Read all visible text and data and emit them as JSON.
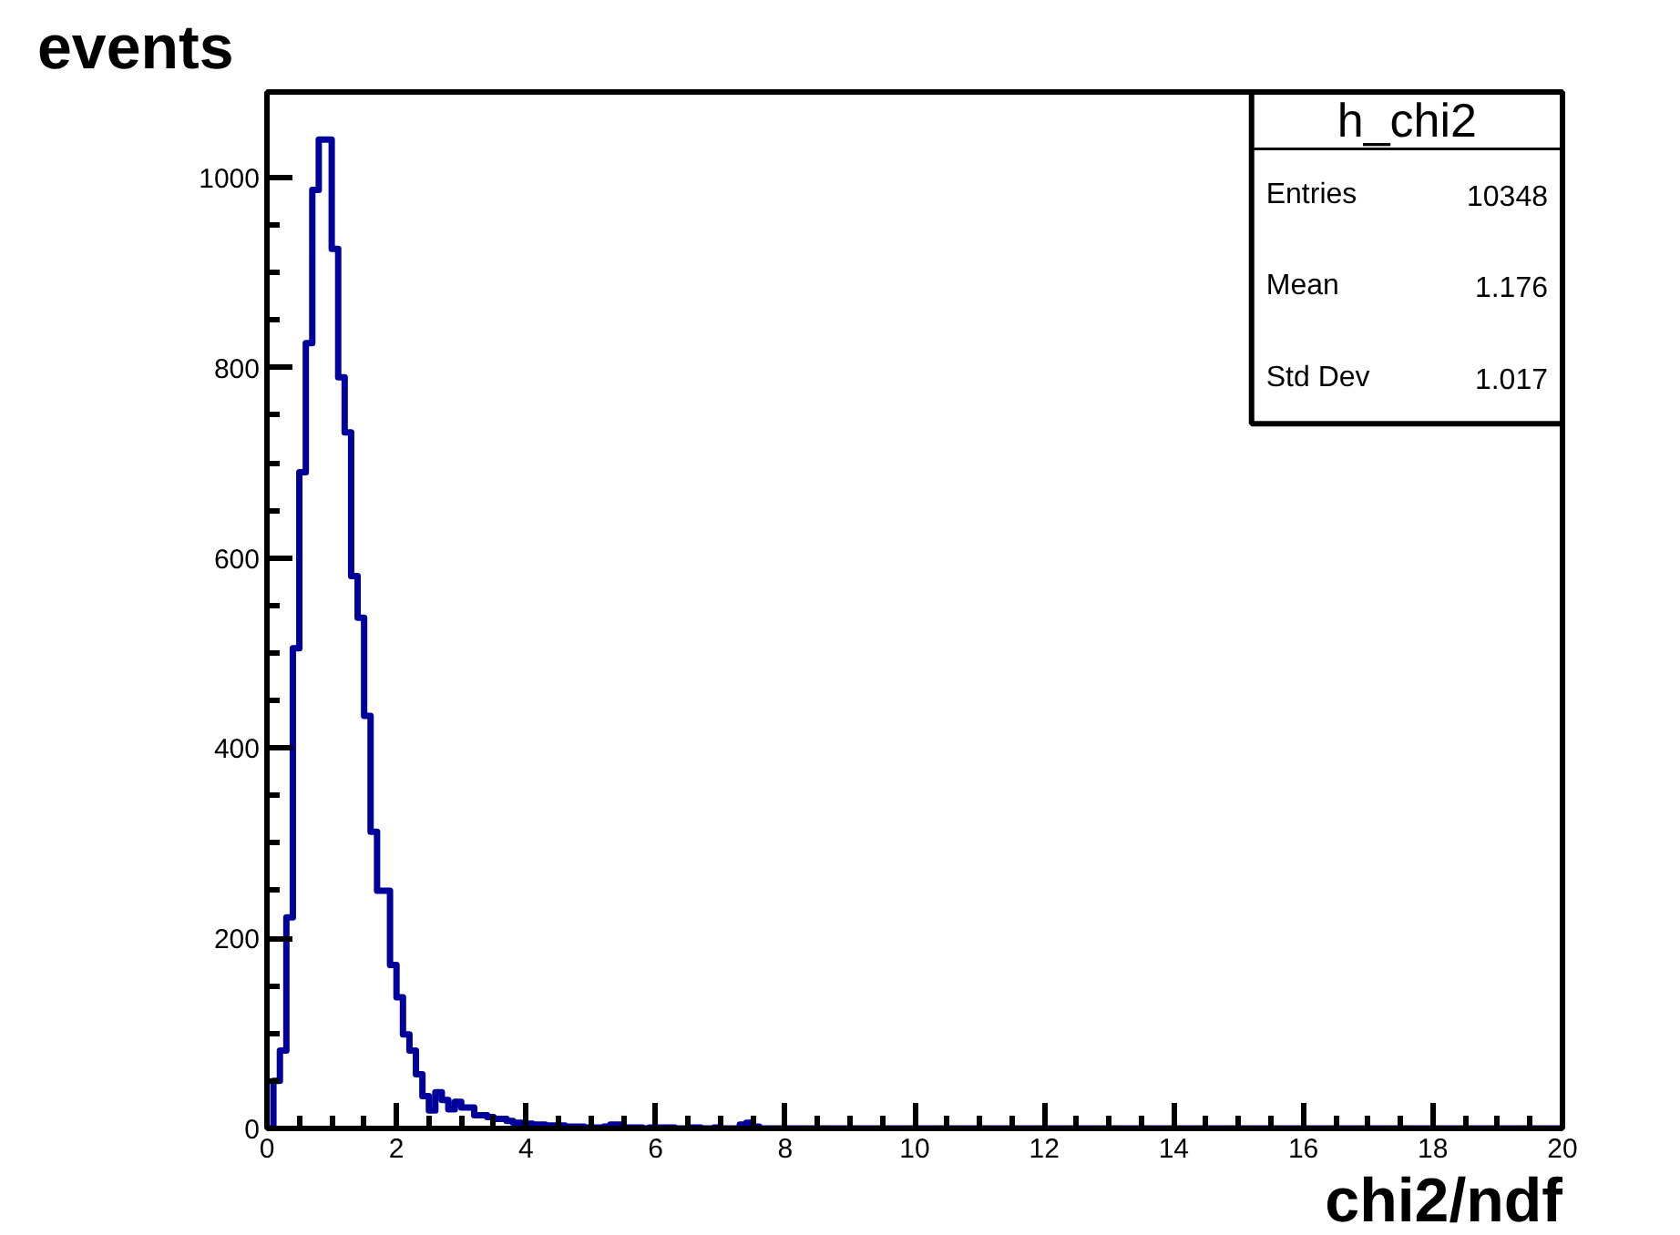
{
  "chart_data": {
    "type": "histogram",
    "xlabel": "chi2/ndf",
    "ylabel": "events",
    "bins": [
      0,
      0.1,
      0.2,
      0.3,
      0.4,
      0.5,
      0.6,
      0.7,
      0.8,
      0.9,
      1,
      1.1,
      1.2,
      1.3,
      1.4,
      1.5,
      1.6,
      1.7,
      1.8,
      1.9,
      2,
      2.1,
      2.2,
      2.3,
      2.4,
      2.5,
      2.6,
      2.7,
      2.8,
      2.9,
      3,
      3.1,
      3.2,
      3.3,
      3.4,
      3.5,
      3.6,
      3.7,
      3.8,
      3.9,
      4,
      4.1,
      4.2,
      4.3,
      4.4,
      4.5,
      4.6,
      4.7,
      4.8,
      4.9,
      5,
      5.1,
      5.2,
      5.3,
      5.4,
      5.5,
      5.6,
      5.7,
      5.8,
      5.9,
      6,
      6.1,
      6.2,
      6.3,
      6.4,
      6.5,
      6.6,
      6.7,
      6.8,
      6.9,
      7,
      7.1,
      7.2,
      7.3,
      7.4,
      7.5,
      7.6,
      7.7,
      7.8,
      7.9,
      8,
      20
    ],
    "values": [
      0,
      50,
      82,
      222,
      505,
      690,
      826,
      987,
      1040,
      1040,
      925,
      790,
      732,
      581,
      537,
      434,
      312,
      250,
      250,
      172,
      138,
      99,
      82,
      57,
      34,
      19,
      38,
      30,
      20,
      28,
      22,
      22,
      14,
      14,
      12,
      10,
      10,
      8,
      6,
      6,
      5,
      4,
      4,
      3,
      3,
      3,
      2,
      2,
      2,
      1,
      1,
      1,
      2,
      4,
      4,
      1,
      1,
      1,
      0,
      1,
      1,
      1,
      1,
      0,
      0,
      1,
      1,
      0,
      0,
      1,
      0,
      0,
      0,
      4,
      6,
      2,
      0,
      0,
      0,
      0,
      0
    ],
    "color": "#00009a",
    "xlim": [
      0,
      20
    ],
    "ylim": [
      0,
      1090
    ],
    "xticks": [
      0,
      2,
      4,
      6,
      8,
      10,
      12,
      14,
      16,
      18,
      20
    ],
    "yticks": [
      0,
      200,
      400,
      600,
      800,
      1000
    ],
    "grid": false,
    "annotations": [
      "h_chi2",
      "Entries",
      "10348",
      "Mean",
      "1.176",
      "Std Dev",
      "1.017"
    ]
  }
}
